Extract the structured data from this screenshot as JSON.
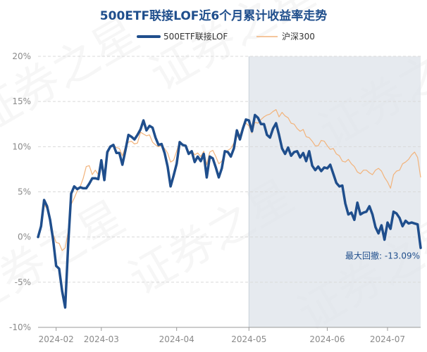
{
  "chart_data": {
    "type": "line",
    "title": "500ETF联接LOF近6个月累计收益率走势",
    "series": [
      {
        "name": "500ETF联接LOF",
        "color": "#1f4e8c",
        "values": [
          0.0,
          1.2,
          4.1,
          3.4,
          1.9,
          -0.3,
          -3.2,
          -3.5,
          -6.0,
          -7.8,
          -0.8,
          4.8,
          5.6,
          5.3,
          5.5,
          5.4,
          5.4,
          5.9,
          6.5,
          6.5,
          6.4,
          8.5,
          6.3,
          9.4,
          10.0,
          10.2,
          9.3,
          9.3,
          8.0,
          9.6,
          11.3,
          11.1,
          10.8,
          11.3,
          11.9,
          12.9,
          11.8,
          12.3,
          12.1,
          11.0,
          10.2,
          10.3,
          9.3,
          7.8,
          5.6,
          6.8,
          8.1,
          10.5,
          10.2,
          10.1,
          9.2,
          9.5,
          8.3,
          8.9,
          8.4,
          9.2,
          6.6,
          8.9,
          8.7,
          7.7,
          6.6,
          7.6,
          9.5,
          9.4,
          8.9,
          9.8,
          11.8,
          10.8,
          12.0,
          13.0,
          12.9,
          11.7,
          13.5,
          13.2,
          12.5,
          12.5,
          11.3,
          11.0,
          12.0,
          12.6,
          11.3,
          9.8,
          9.2,
          9.9,
          9.0,
          9.4,
          9.5,
          8.8,
          9.3,
          8.4,
          9.5,
          7.9,
          7.4,
          7.8,
          7.3,
          7.7,
          7.6,
          8.0,
          7.0,
          6.0,
          5.6,
          5.7,
          3.7,
          2.5,
          2.7,
          1.9,
          3.8,
          2.5,
          2.7,
          2.8,
          3.4,
          2.5,
          1.1,
          0.4,
          1.3,
          -0.3,
          1.6,
          0.9,
          2.8,
          2.6,
          2.1,
          1.2,
          1.8,
          1.5,
          1.6,
          1.5,
          1.4,
          -1.2
        ]
      },
      {
        "name": "沪深300",
        "color": "#f2b37b",
        "values": [
          0.0,
          1.0,
          3.6,
          3.1,
          1.8,
          0.3,
          -0.6,
          -0.7,
          -1.5,
          -1.2,
          0.6,
          3.6,
          4.3,
          5.1,
          5.6,
          6.5,
          7.8,
          7.9,
          6.9,
          7.4,
          6.9,
          7.8,
          7.2,
          9.0,
          10.1,
          10.2,
          9.9,
          9.8,
          9.0,
          10.0,
          10.5,
          10.6,
          10.3,
          10.4,
          11.6,
          11.4,
          11.2,
          11.3,
          10.5,
          10.2,
          10.0,
          10.1,
          9.8,
          9.3,
          8.3,
          8.5,
          9.5,
          10.6,
          10.3,
          10.0,
          9.4,
          9.6,
          9.1,
          9.3,
          8.9,
          9.5,
          8.0,
          9.4,
          9.6,
          8.9,
          8.1,
          8.4,
          9.3,
          9.6,
          9.8,
          10.4,
          11.1,
          11.3,
          12.2,
          12.6,
          12.3,
          11.5,
          12.7,
          12.6,
          13.0,
          13.3,
          13.5,
          13.6,
          13.9,
          14.1,
          13.3,
          13.8,
          13.4,
          13.2,
          12.6,
          12.5,
          12.0,
          11.7,
          11.9,
          11.1,
          11.0,
          10.6,
          10.1,
          10.1,
          10.7,
          10.6,
          10.1,
          9.7,
          9.8,
          9.2,
          9.0,
          8.4,
          8.3,
          8.6,
          8.1,
          7.8,
          7.2,
          7.0,
          7.4,
          7.4,
          7.1,
          6.9,
          7.4,
          7.6,
          7.3,
          6.6,
          6.1,
          5.4,
          6.9,
          7.3,
          7.4,
          8.1,
          8.3,
          8.6,
          9.1,
          9.4,
          8.8,
          6.6
        ]
      }
    ],
    "y_ticks": [
      "20%",
      "15%",
      "10%",
      "5%",
      "0%",
      "-5%",
      "-10%"
    ],
    "ylim": [
      -10,
      20
    ],
    "x_tick_labels": [
      "2024-02",
      "2024-03",
      "2024-04",
      "2024-05",
      "2024-06",
      "2024-07"
    ],
    "x_tick_index": [
      6,
      21,
      46,
      70,
      96,
      116
    ],
    "drawdown_start_index": 70,
    "annotation": "最大回撤: -13.09%",
    "legend_position": "top-center",
    "grid": "horizontal dashed",
    "watermark": "证券之星"
  }
}
